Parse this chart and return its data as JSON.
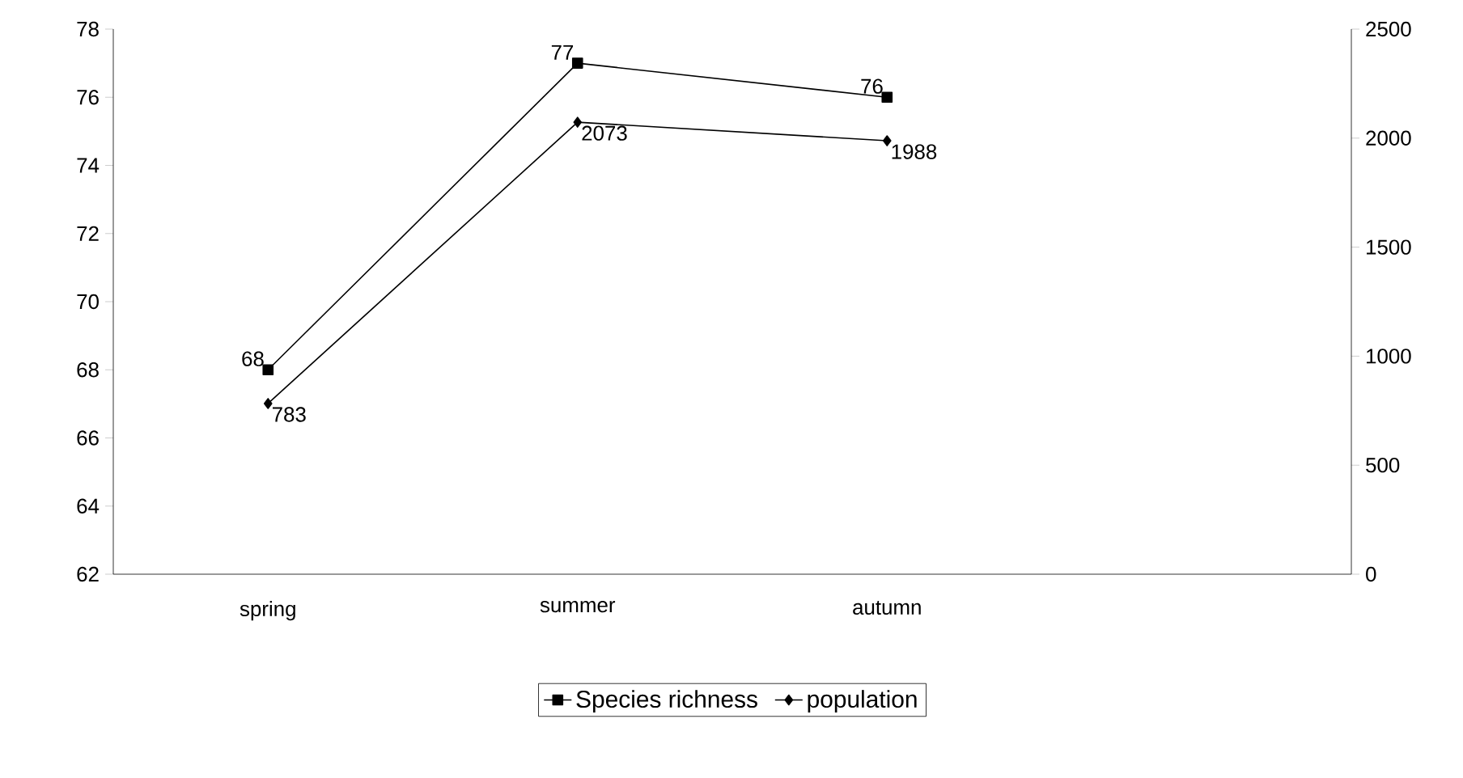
{
  "chart_data": {
    "type": "line",
    "categories": [
      "spring",
      "summer",
      "autumn",
      null
    ],
    "series": [
      {
        "name": "Species richness",
        "color": "#000000",
        "marker": "square",
        "values": [
          68,
          77,
          76,
          null
        ]
      },
      {
        "name": "population",
        "color": "#000000",
        "marker": "diamond",
        "axis": "y2",
        "values": [
          783,
          2073,
          1988,
          null
        ]
      }
    ],
    "ylim": [
      62,
      78
    ],
    "yticks": [
      62,
      64,
      66,
      68,
      70,
      72,
      74,
      76,
      78
    ],
    "y2lim": [
      0,
      2500
    ],
    "y2ticks": [
      0,
      500,
      1000,
      1500,
      2000,
      2500
    ],
    "data_labels": true,
    "legend": "bottom"
  }
}
